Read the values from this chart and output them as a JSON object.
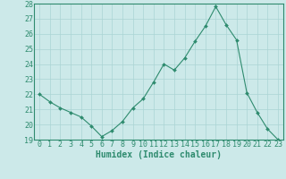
{
  "x": [
    0,
    1,
    2,
    3,
    4,
    5,
    6,
    7,
    8,
    9,
    10,
    11,
    12,
    13,
    14,
    15,
    16,
    17,
    18,
    19,
    20,
    21,
    22,
    23
  ],
  "y": [
    22.0,
    21.5,
    21.1,
    20.8,
    20.5,
    19.9,
    19.2,
    19.6,
    20.2,
    21.1,
    21.7,
    22.8,
    24.0,
    23.6,
    24.4,
    25.5,
    26.5,
    27.8,
    26.6,
    25.6,
    22.1,
    20.8,
    19.7,
    19.0
  ],
  "line_color": "#2e8b6e",
  "marker": "D",
  "marker_size": 2.0,
  "bg_color": "#cce9e9",
  "grid_color": "#aad4d4",
  "axis_color": "#2e8b6e",
  "xlabel": "Humidex (Indice chaleur)",
  "xlabel_fontsize": 7,
  "tick_fontsize": 6,
  "ylim": [
    19,
    28
  ],
  "xlim": [
    -0.5,
    23.5
  ],
  "yticks": [
    19,
    20,
    21,
    22,
    23,
    24,
    25,
    26,
    27,
    28
  ],
  "xticks": [
    0,
    1,
    2,
    3,
    4,
    5,
    6,
    7,
    8,
    9,
    10,
    11,
    12,
    13,
    14,
    15,
    16,
    17,
    18,
    19,
    20,
    21,
    22,
    23
  ]
}
